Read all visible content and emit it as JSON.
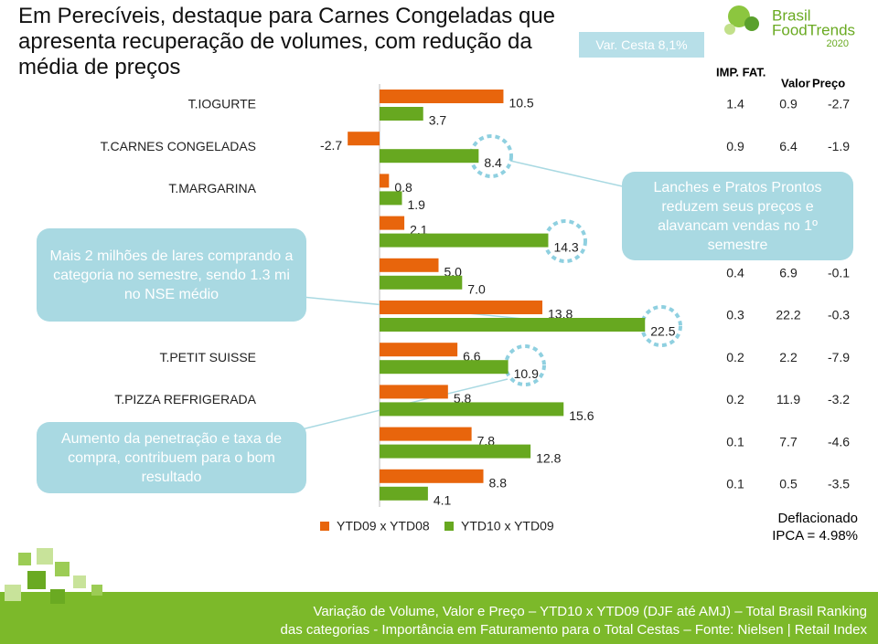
{
  "title": "Em Perecíveis, destaque para Carnes Congeladas que apresenta recuperação de volumes, com redução da média de preços",
  "badge": "Var. Cesta 8,1%",
  "logo": {
    "line1": "Brasil",
    "line2": "FoodTrends",
    "line3": "2020"
  },
  "chart_data": {
    "type": "bar",
    "orientation": "horizontal",
    "categories": [
      "T.IOGURTE",
      "T.CARNES CONGELADAS",
      "T.MARGARINA",
      null,
      null,
      null,
      "T.PETIT SUISSE",
      "T.PIZZA REFRIGERADA",
      null,
      null
    ],
    "series": [
      {
        "name": "YTD09 x YTD08",
        "color": "#e8650c",
        "values": [
          10.5,
          -2.7,
          0.8,
          2.1,
          5.0,
          13.8,
          6.6,
          5.8,
          7.8,
          8.8
        ],
        "value_labels": [
          "10.5",
          "-2.7",
          "0.8",
          "2.1",
          "5.0",
          "13.8",
          "6.6",
          "5.8",
          "7.8",
          "8.8"
        ]
      },
      {
        "name": "YTD10 x YTD09",
        "color": "#67a820",
        "values": [
          3.7,
          8.4,
          1.9,
          14.3,
          7.0,
          22.5,
          10.9,
          15.6,
          12.8,
          4.1
        ],
        "value_labels": [
          "3.7",
          "8.4",
          "1.9",
          "14.3",
          "7.0",
          "22.5",
          "10.9",
          "15.6",
          "12.8",
          "4.1"
        ]
      }
    ]
  },
  "table": {
    "headers": [
      "IMP. FAT.",
      "Valor",
      "Preço"
    ],
    "rows": [
      [
        1.4,
        0.9,
        -2.7
      ],
      [
        0.9,
        6.4,
        -1.9
      ],
      null,
      null,
      [
        0.4,
        6.9,
        -0.1
      ],
      [
        0.3,
        22.2,
        -0.3
      ],
      [
        0.2,
        2.2,
        -7.9
      ],
      [
        0.2,
        11.9,
        -3.2
      ],
      [
        0.1,
        7.7,
        -4.6
      ],
      [
        0.1,
        0.5,
        -3.5
      ]
    ]
  },
  "callouts": [
    "Mais 2 milhões de lares comprando a categoria no semestre, sendo 1.3 mi no NSE médio",
    "Aumento da penetração e taxa de compra, contribuem para o bom resultado",
    "Lanches e Pratos Prontos reduzem seus preços e alavancam vendas no 1º semestre"
  ],
  "note": [
    "Deflacionado",
    "IPCA = 4.98%"
  ],
  "footer": [
    "Variação de Volume, Valor e Preço – YTD10 x YTD09 (DJF até AMJ) – Total Brasil Ranking",
    "das categorias - Importância em Faturamento para o Total Cestas – Fonte: Nielsen | Retail Index"
  ]
}
